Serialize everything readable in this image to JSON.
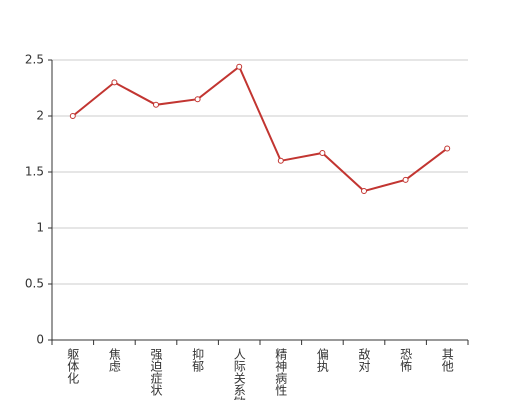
{
  "chart_data": {
    "type": "line",
    "categories": [
      "躯体化",
      "焦虑",
      "强迫症状",
      "抑郁",
      "人际关系敏感",
      "精神病性",
      "偏执",
      "敌对",
      "恐怖",
      "其他"
    ],
    "values": [
      2.0,
      2.3,
      2.1,
      2.15,
      2.44,
      1.6,
      1.67,
      1.33,
      1.43,
      1.71
    ],
    "color": "#c23531",
    "ylim": [
      0,
      2.5
    ],
    "yticks": [
      0,
      0.5,
      1,
      1.5,
      2,
      2.5
    ],
    "grid": true
  }
}
